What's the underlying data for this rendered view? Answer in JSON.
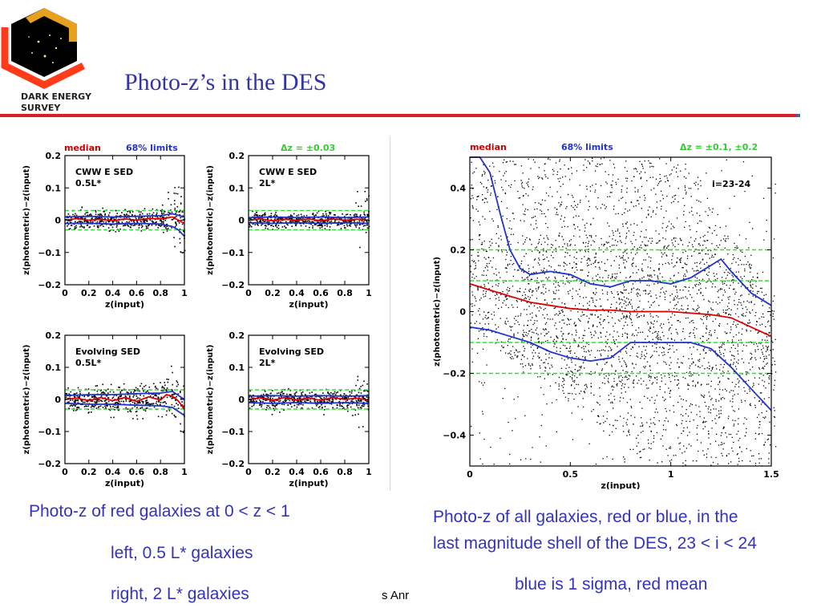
{
  "logo": {
    "org_line1": "DARK ENERGY",
    "org_line2": "SURVEY",
    "icon": "des-hexagon-logo"
  },
  "slide": {
    "title": "Photo-z’s in the DES"
  },
  "small_panels": {
    "legend_left": {
      "median": "median",
      "limits": "68% limits"
    },
    "legend_right": {
      "dz": "Δz = ±0.03"
    },
    "ylabel": "z(photometric)−z(input)",
    "xlabel": "z(input)",
    "xticks": [
      "0",
      "0.2",
      "0.4",
      "0.6",
      "0.8",
      "1"
    ],
    "yticks": [
      "0.2",
      "0.1",
      "0",
      "−0.1",
      "−0.2"
    ],
    "panels": [
      {
        "line1": "CWW E SED",
        "line2": "0.5L*"
      },
      {
        "line1": "CWW E SED",
        "line2": "2L*"
      },
      {
        "line1": "Evolving SED",
        "line2": "0.5L*"
      },
      {
        "line1": "Evolving SED",
        "line2": "2L*"
      }
    ]
  },
  "chart_data": [
    {
      "type": "scatter",
      "panel": "CWW E SED 0.5L*",
      "xlabel": "z(input)",
      "ylabel": "z(photometric)−z(input)",
      "xlim": [
        0,
        1
      ],
      "ylim": [
        -0.2,
        0.2
      ],
      "dz_lines": [
        0.03,
        -0.03
      ],
      "series": [
        {
          "name": "median",
          "x": [
            0,
            0.1,
            0.2,
            0.3,
            0.4,
            0.5,
            0.6,
            0.7,
            0.8,
            0.9,
            1.0
          ],
          "values": [
            0,
            0.005,
            0.0,
            0.003,
            -0.002,
            0.004,
            0.0,
            0.005,
            0.004,
            0.01,
            -0.01
          ]
        },
        {
          "name": "68% limits upper",
          "x": [
            0,
            0.2,
            0.4,
            0.6,
            0.8,
            0.9,
            0.95,
            1.0
          ],
          "values": [
            0.01,
            0.012,
            0.01,
            0.012,
            0.014,
            0.02,
            0.015,
            0.01
          ]
        },
        {
          "name": "68% limits lower",
          "x": [
            0,
            0.2,
            0.4,
            0.6,
            0.8,
            0.9,
            0.95,
            1.0
          ],
          "values": [
            -0.01,
            -0.01,
            -0.012,
            -0.01,
            -0.012,
            -0.02,
            -0.03,
            -0.05
          ]
        }
      ]
    },
    {
      "type": "scatter",
      "panel": "CWW E SED 2L*",
      "xlabel": "z(input)",
      "ylabel": "z(photometric)−z(input)",
      "xlim": [
        0,
        1
      ],
      "ylim": [
        -0.2,
        0.2
      ],
      "dz_lines": [
        0.03,
        -0.03
      ],
      "series": [
        {
          "name": "median",
          "x": [
            0,
            0.1,
            0.2,
            0.3,
            0.4,
            0.5,
            0.6,
            0.7,
            0.8,
            0.9,
            1.0
          ],
          "values": [
            0,
            0.004,
            -0.002,
            0.003,
            0.0,
            0.004,
            -0.002,
            0.004,
            0.0,
            0.003,
            0.0
          ]
        },
        {
          "name": "68% limits upper",
          "x": [
            0,
            0.2,
            0.4,
            0.6,
            0.8,
            1.0
          ],
          "values": [
            0.008,
            0.01,
            0.008,
            0.01,
            0.008,
            0.01
          ]
        },
        {
          "name": "68% limits lower",
          "x": [
            0,
            0.2,
            0.4,
            0.6,
            0.8,
            1.0
          ],
          "values": [
            -0.008,
            -0.01,
            -0.008,
            -0.01,
            -0.008,
            -0.01
          ]
        }
      ]
    },
    {
      "type": "scatter",
      "panel": "Evolving SED 0.5L*",
      "xlabel": "z(input)",
      "ylabel": "z(photometric)−z(input)",
      "xlim": [
        0,
        1
      ],
      "ylim": [
        -0.2,
        0.2
      ],
      "dz_lines": [
        0.03,
        -0.03
      ],
      "series": [
        {
          "name": "median",
          "x": [
            0,
            0.1,
            0.2,
            0.3,
            0.4,
            0.5,
            0.6,
            0.7,
            0.8,
            0.85,
            0.9,
            0.95,
            1.0
          ],
          "values": [
            0,
            0.004,
            -0.004,
            0.006,
            -0.004,
            0.006,
            -0.006,
            0.008,
            -0.002,
            0.015,
            0.01,
            -0.005,
            -0.03
          ]
        },
        {
          "name": "68% limits upper",
          "x": [
            0,
            0.2,
            0.4,
            0.6,
            0.8,
            0.9,
            1.0
          ],
          "values": [
            0.012,
            0.015,
            0.015,
            0.018,
            0.02,
            0.025,
            0.0
          ]
        },
        {
          "name": "68% limits lower",
          "x": [
            0,
            0.2,
            0.4,
            0.6,
            0.8,
            0.9,
            1.0
          ],
          "values": [
            -0.012,
            -0.015,
            -0.015,
            -0.018,
            -0.02,
            -0.025,
            -0.05
          ]
        }
      ]
    },
    {
      "type": "scatter",
      "panel": "Evolving SED 2L*",
      "xlabel": "z(input)",
      "ylabel": "z(photometric)−z(input)",
      "xlim": [
        0,
        1
      ],
      "ylim": [
        -0.2,
        0.2
      ],
      "dz_lines": [
        0.03,
        -0.03
      ],
      "series": [
        {
          "name": "median",
          "x": [
            0,
            0.1,
            0.2,
            0.3,
            0.4,
            0.5,
            0.6,
            0.7,
            0.8,
            0.9,
            1.0
          ],
          "values": [
            0,
            0.005,
            -0.003,
            0.006,
            -0.002,
            0.005,
            -0.003,
            0.006,
            0.0,
            0.004,
            -0.002
          ]
        },
        {
          "name": "68% limits upper",
          "x": [
            0,
            0.2,
            0.4,
            0.6,
            0.8,
            1.0
          ],
          "values": [
            0.01,
            0.012,
            0.01,
            0.012,
            0.01,
            0.012
          ]
        },
        {
          "name": "68% limits lower",
          "x": [
            0,
            0.2,
            0.4,
            0.6,
            0.8,
            1.0
          ],
          "values": [
            -0.01,
            -0.012,
            -0.01,
            -0.012,
            -0.01,
            -0.012
          ]
        }
      ]
    },
    {
      "type": "scatter",
      "panel": "i=23-24",
      "xlabel": "z(input)",
      "ylabel": "z(photometric)−z(input)",
      "xlim": [
        0,
        1.5
      ],
      "ylim": [
        -0.5,
        0.5
      ],
      "dz_lines": [
        0.2,
        0.1,
        -0.1,
        -0.2
      ],
      "series": [
        {
          "name": "median",
          "x": [
            0,
            0.1,
            0.2,
            0.3,
            0.4,
            0.5,
            0.6,
            0.7,
            0.8,
            0.9,
            1.0,
            1.1,
            1.2,
            1.3,
            1.4,
            1.5
          ],
          "values": [
            0.09,
            0.07,
            0.05,
            0.03,
            0.02,
            0.01,
            0.005,
            0.005,
            0.0,
            0.0,
            0.0,
            -0.005,
            -0.01,
            -0.02,
            -0.05,
            -0.08
          ]
        },
        {
          "name": "68% limits upper",
          "x": [
            0,
            0.05,
            0.1,
            0.15,
            0.2,
            0.25,
            0.3,
            0.4,
            0.5,
            0.6,
            0.7,
            0.8,
            0.9,
            1.0,
            1.1,
            1.2,
            1.25,
            1.3,
            1.4,
            1.5
          ],
          "values": [
            0.5,
            0.5,
            0.45,
            0.32,
            0.2,
            0.14,
            0.12,
            0.13,
            0.12,
            0.09,
            0.08,
            0.1,
            0.1,
            0.09,
            0.11,
            0.15,
            0.17,
            0.13,
            0.06,
            0.02
          ]
        },
        {
          "name": "68% limits lower",
          "x": [
            0,
            0.1,
            0.2,
            0.3,
            0.4,
            0.5,
            0.6,
            0.7,
            0.8,
            0.9,
            1.0,
            1.1,
            1.2,
            1.3,
            1.4,
            1.5
          ],
          "values": [
            -0.05,
            -0.06,
            -0.08,
            -0.1,
            -0.13,
            -0.15,
            -0.16,
            -0.15,
            -0.1,
            -0.1,
            -0.1,
            -0.1,
            -0.12,
            -0.18,
            -0.25,
            -0.32
          ]
        }
      ]
    }
  ],
  "big_panel": {
    "legend_median": "median",
    "legend_limits": "68% limits",
    "legend_dz": "Δz = ±0.1, ±0.2",
    "annotation": "i=23-24",
    "ylabel": "z(photometric)−z(input)",
    "xlabel": "z(input)",
    "xticks": [
      "0",
      "0.5",
      "1",
      "1.5"
    ],
    "yticks": [
      "0.4",
      "0.2",
      "0",
      "−0.2",
      "−0.4"
    ]
  },
  "captions": {
    "left_1": "Photo-z of red galaxies at 0 < z < 1",
    "left_2": "left, 0.5 L* galaxies",
    "left_3": "right, 2 L* galaxies",
    "right_1": "Photo-z of all galaxies, red or blue, in the",
    "right_2": "last magnitude shell of the DES, 23 < i < 24",
    "right_3": "blue is 1 sigma, red mean",
    "footer_fragment": "s Anr"
  },
  "colors": {
    "title": "#3333aa",
    "caption": "#3333bb",
    "median": "#cc0000",
    "limits": "#2233cc",
    "dz": "#33cc33",
    "rule": "#d82020"
  }
}
